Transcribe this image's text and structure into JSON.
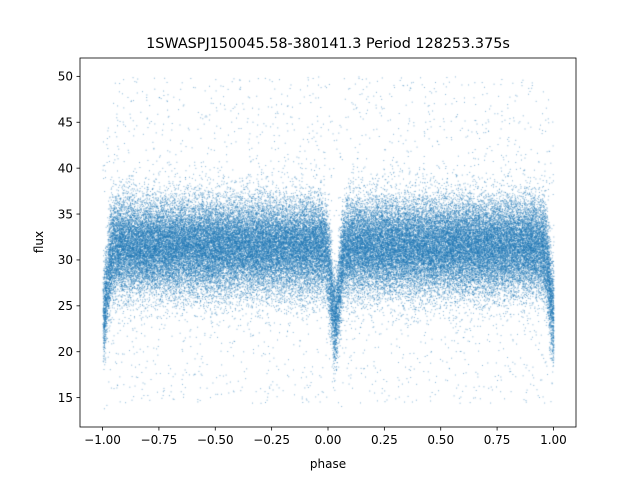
{
  "chart_data": {
    "type": "scatter",
    "title": "1SWASPJ150045.58-380141.3 Period 128253.375s",
    "xlabel": "phase",
    "ylabel": "flux",
    "xlim": [
      -1.1,
      1.1
    ],
    "ylim": [
      11.8,
      52.0
    ],
    "xticks": [
      -1.0,
      -0.75,
      -0.5,
      -0.25,
      0.0,
      0.25,
      0.5,
      0.75,
      1.0
    ],
    "xtick_labels": [
      "−1.00",
      "−0.75",
      "−0.50",
      "−0.25",
      "0.00",
      "0.25",
      "0.50",
      "0.75",
      "1.00"
    ],
    "yticks": [
      15,
      20,
      25,
      30,
      35,
      40,
      45,
      50
    ],
    "ytick_labels": [
      "15",
      "20",
      "25",
      "30",
      "35",
      "40",
      "45",
      "50"
    ],
    "grid": false,
    "marker_color": "#1f77b4",
    "phase_range": [
      -1.0,
      1.0
    ],
    "baseline_flux": 31.5,
    "eclipse_minima": [
      {
        "phase": -1.0,
        "flux": 24.0
      },
      {
        "phase": 0.03,
        "flux": 23.5
      },
      {
        "phase": 1.0,
        "flux": 24.0
      }
    ]
  }
}
